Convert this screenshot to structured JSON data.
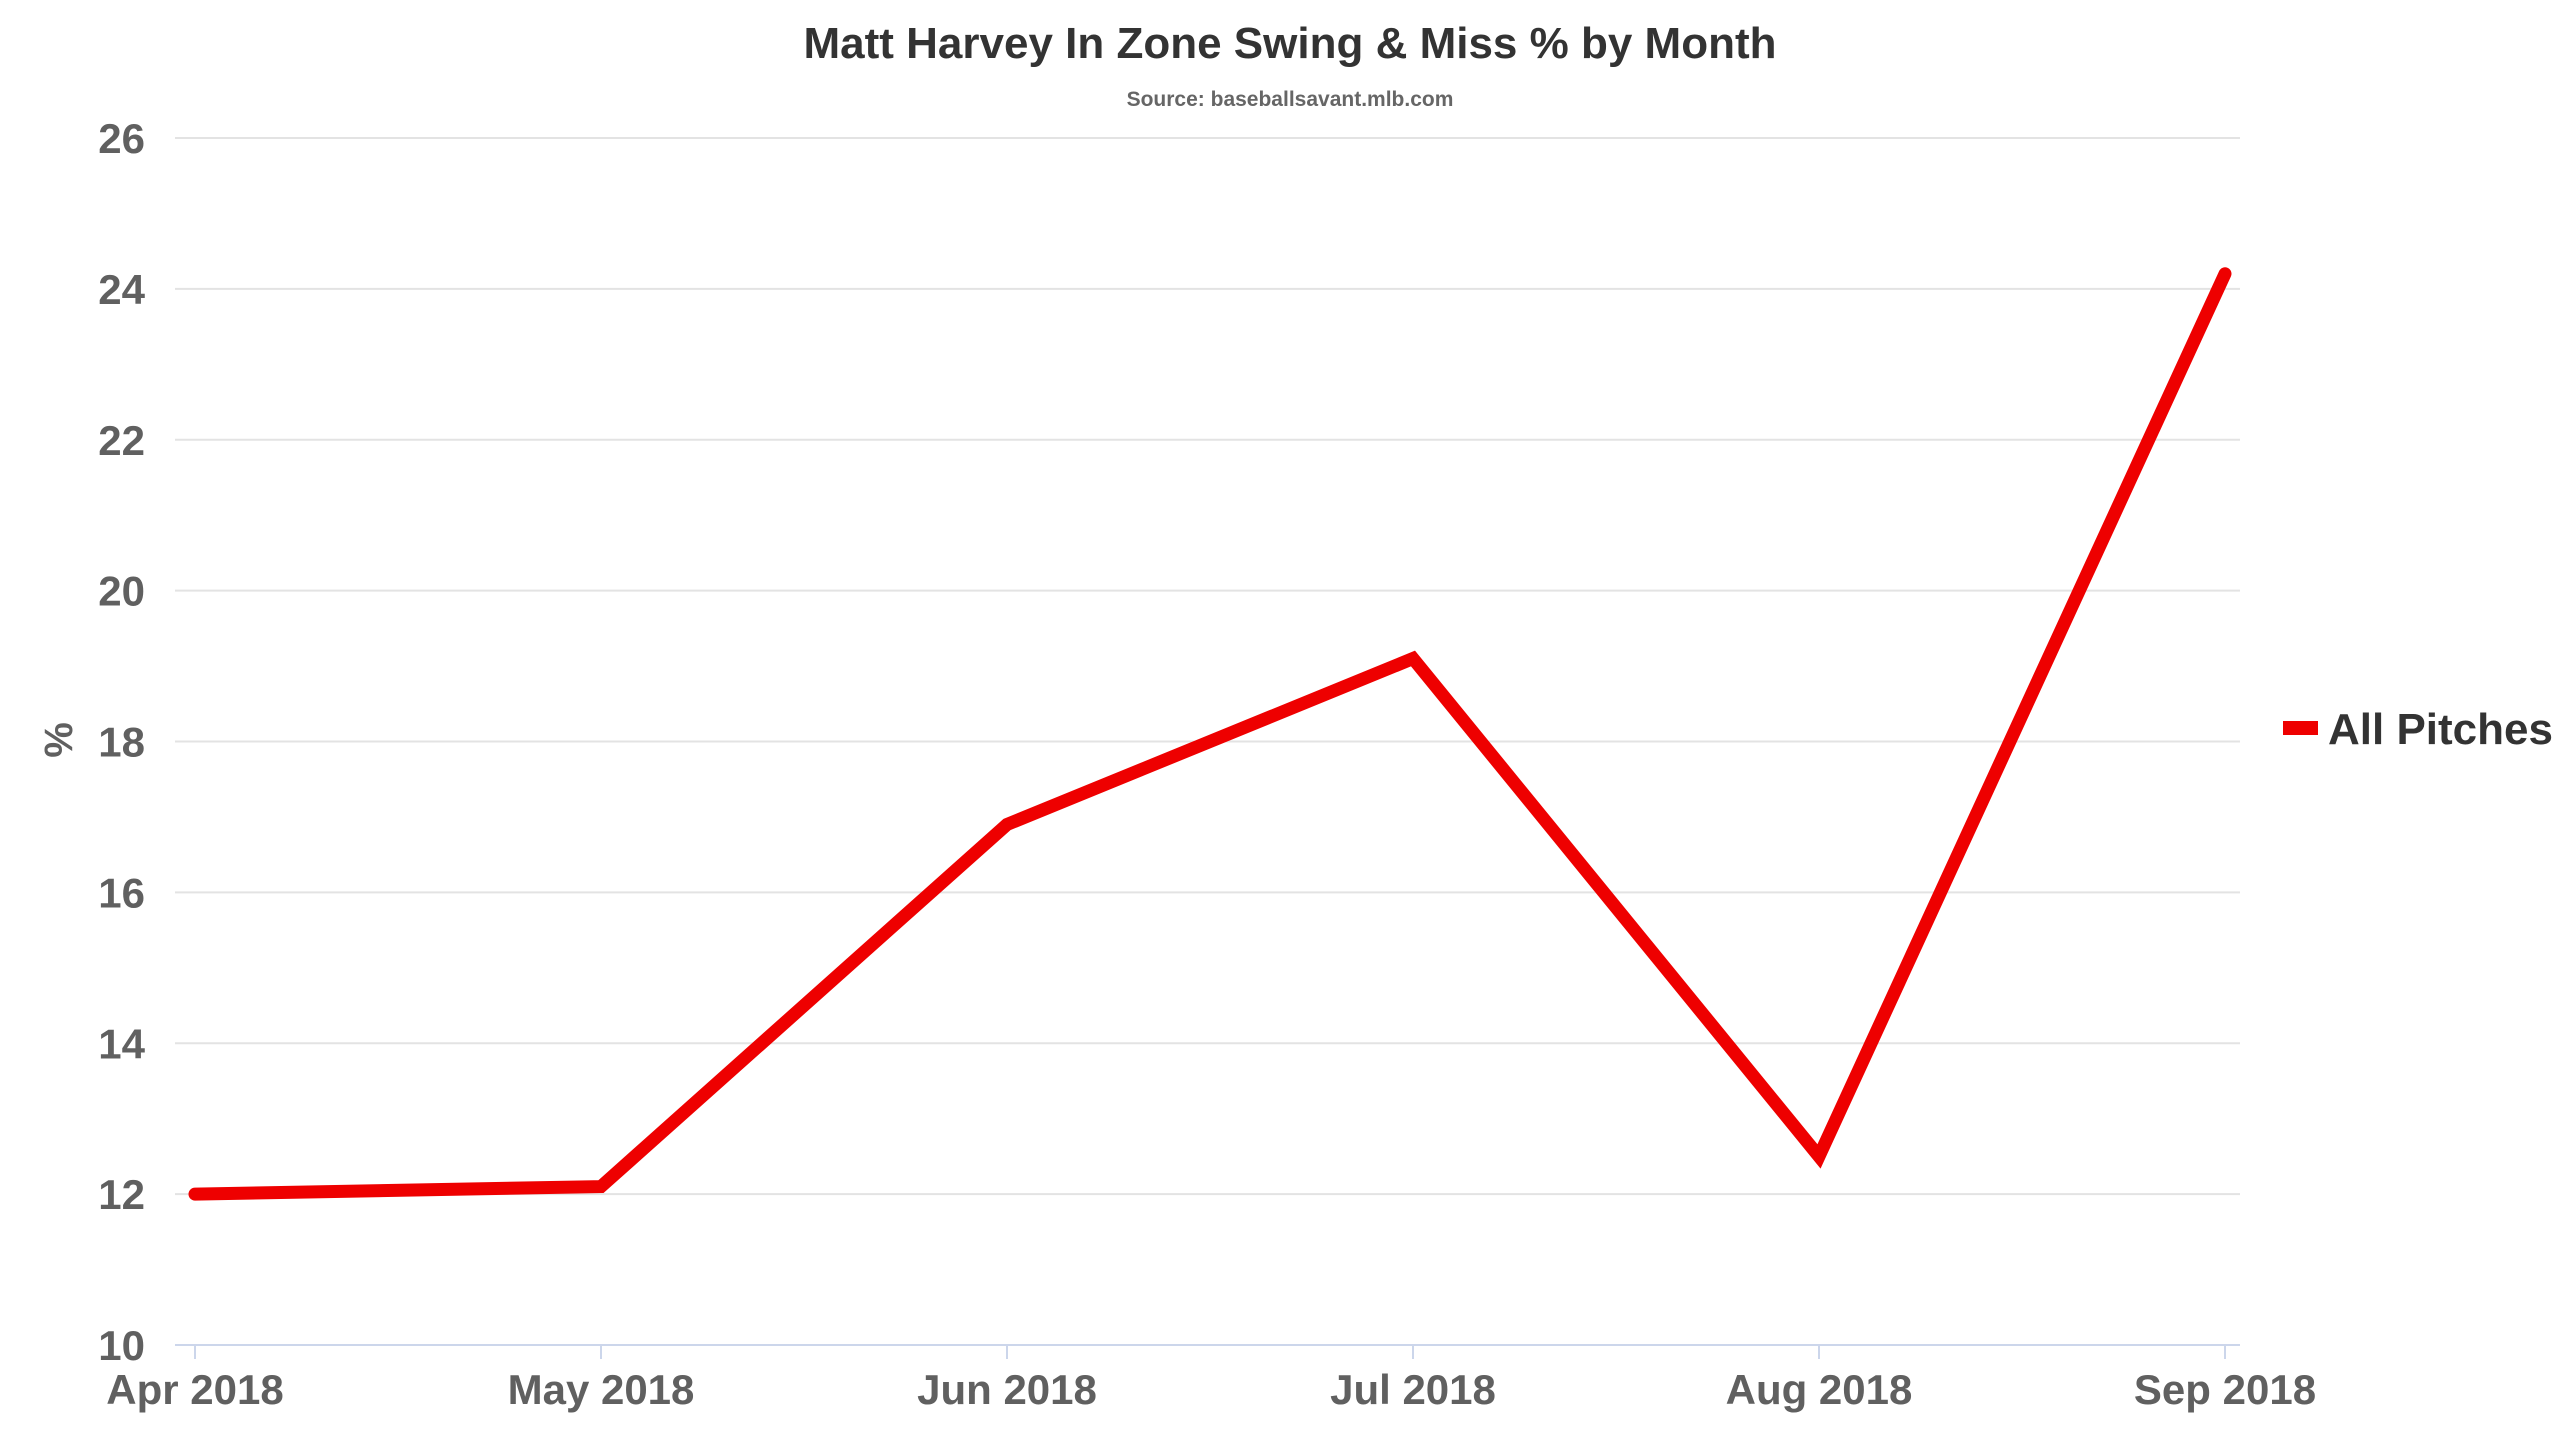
{
  "chart_data": {
    "type": "line",
    "title": "Matt Harvey In Zone Swing & Miss % by Month",
    "subtitle": "Source: baseballsavant.mlb.com",
    "xlabel": "",
    "ylabel": "%",
    "categories": [
      "Apr 2018",
      "May 2018",
      "Jun 2018",
      "Jul 2018",
      "Aug 2018",
      "Sep 2018"
    ],
    "ylim": [
      10,
      26
    ],
    "yticks": [
      10,
      12,
      14,
      16,
      18,
      20,
      22,
      24,
      26
    ],
    "grid": true,
    "legend_position": "right",
    "series": [
      {
        "name": "All Pitches",
        "color": "#ee0000",
        "values": [
          12.0,
          12.1,
          16.9,
          19.1,
          12.5,
          24.2
        ]
      }
    ]
  }
}
